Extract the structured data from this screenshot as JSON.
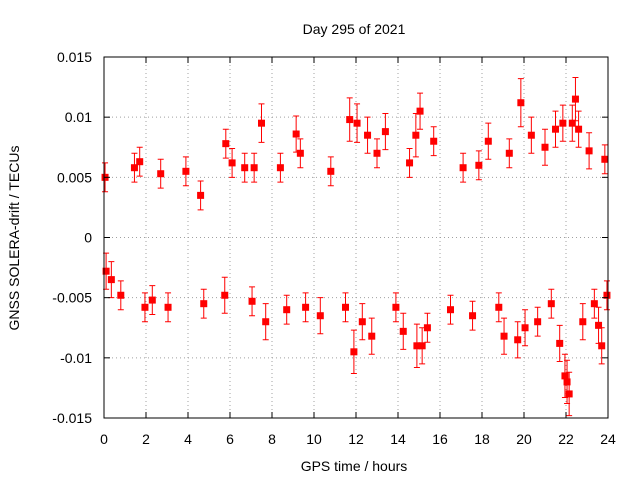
{
  "chart_data": {
    "type": "scatter",
    "title": "Day 295 of 2021",
    "xlabel": "GPS time / hours",
    "ylabel": "GNSS SOLERA-drift / TECUs",
    "xlim": [
      0,
      24
    ],
    "ylim": [
      -0.015,
      0.015
    ],
    "x_ticks": [
      "0",
      "2",
      "4",
      "6",
      "8",
      "10",
      "12",
      "14",
      "16",
      "18",
      "20",
      "22",
      "24"
    ],
    "y_ticks": [
      "-0.015",
      "-0.01",
      "-0.005",
      "0",
      "0.005",
      "0.01",
      "0.015"
    ],
    "grid": true,
    "legend": "none",
    "series": [
      {
        "color": "#ff0000",
        "marker": "square",
        "error_bars": true,
        "points": [
          {
            "x": 0.05,
            "y": 0.005,
            "err": 0.0012
          },
          {
            "x": 0.1,
            "y": -0.0028,
            "err": 0.0015
          },
          {
            "x": 0.35,
            "y": -0.0035,
            "err": 0.0015
          },
          {
            "x": 0.8,
            "y": -0.0048,
            "err": 0.0012
          },
          {
            "x": 1.45,
            "y": 0.0058,
            "err": 0.0012
          },
          {
            "x": 1.7,
            "y": 0.0063,
            "err": 0.0012
          },
          {
            "x": 1.95,
            "y": -0.0058,
            "err": 0.0012
          },
          {
            "x": 2.3,
            "y": -0.0052,
            "err": 0.0012
          },
          {
            "x": 2.7,
            "y": 0.0053,
            "err": 0.0012
          },
          {
            "x": 3.05,
            "y": -0.0058,
            "err": 0.0012
          },
          {
            "x": 3.9,
            "y": 0.0055,
            "err": 0.0012
          },
          {
            "x": 4.6,
            "y": 0.0035,
            "err": 0.0012
          },
          {
            "x": 4.75,
            "y": -0.0055,
            "err": 0.0012
          },
          {
            "x": 5.75,
            "y": -0.0048,
            "err": 0.0015
          },
          {
            "x": 5.8,
            "y": 0.0078,
            "err": 0.0012
          },
          {
            "x": 6.1,
            "y": 0.0062,
            "err": 0.0012
          },
          {
            "x": 6.7,
            "y": 0.0058,
            "err": 0.0012
          },
          {
            "x": 7.05,
            "y": -0.0053,
            "err": 0.0012
          },
          {
            "x": 7.15,
            "y": 0.0058,
            "err": 0.0012
          },
          {
            "x": 7.5,
            "y": 0.0095,
            "err": 0.0016
          },
          {
            "x": 7.7,
            "y": -0.007,
            "err": 0.0015
          },
          {
            "x": 8.4,
            "y": 0.0058,
            "err": 0.0012
          },
          {
            "x": 8.7,
            "y": -0.006,
            "err": 0.0012
          },
          {
            "x": 9.15,
            "y": 0.0086,
            "err": 0.0015
          },
          {
            "x": 9.35,
            "y": 0.007,
            "err": 0.0012
          },
          {
            "x": 9.6,
            "y": -0.0058,
            "err": 0.0012
          },
          {
            "x": 10.3,
            "y": -0.0065,
            "err": 0.0015
          },
          {
            "x": 10.8,
            "y": 0.0055,
            "err": 0.0012
          },
          {
            "x": 11.5,
            "y": -0.0058,
            "err": 0.0012
          },
          {
            "x": 11.7,
            "y": 0.0098,
            "err": 0.0018
          },
          {
            "x": 11.9,
            "y": -0.0095,
            "err": 0.0018
          },
          {
            "x": 12.05,
            "y": 0.0095,
            "err": 0.0016
          },
          {
            "x": 12.3,
            "y": -0.007,
            "err": 0.0015
          },
          {
            "x": 12.55,
            "y": 0.0085,
            "err": 0.0015
          },
          {
            "x": 12.75,
            "y": -0.0082,
            "err": 0.0015
          },
          {
            "x": 13.0,
            "y": 0.007,
            "err": 0.0012
          },
          {
            "x": 13.4,
            "y": 0.0088,
            "err": 0.0015
          },
          {
            "x": 13.9,
            "y": -0.0058,
            "err": 0.0012
          },
          {
            "x": 14.25,
            "y": -0.0078,
            "err": 0.0015
          },
          {
            "x": 14.55,
            "y": 0.0062,
            "err": 0.0012
          },
          {
            "x": 14.85,
            "y": 0.0085,
            "err": 0.0018
          },
          {
            "x": 14.9,
            "y": -0.009,
            "err": 0.0018
          },
          {
            "x": 15.05,
            "y": 0.0105,
            "err": 0.0015
          },
          {
            "x": 15.15,
            "y": -0.009,
            "err": 0.0015
          },
          {
            "x": 15.4,
            "y": -0.0075,
            "err": 0.0012
          },
          {
            "x": 15.7,
            "y": 0.008,
            "err": 0.0012
          },
          {
            "x": 16.5,
            "y": -0.006,
            "err": 0.0012
          },
          {
            "x": 17.1,
            "y": 0.0058,
            "err": 0.0012
          },
          {
            "x": 17.55,
            "y": -0.0065,
            "err": 0.0012
          },
          {
            "x": 17.85,
            "y": 0.006,
            "err": 0.0012
          },
          {
            "x": 18.3,
            "y": 0.008,
            "err": 0.0015
          },
          {
            "x": 18.8,
            "y": -0.0058,
            "err": 0.0012
          },
          {
            "x": 19.05,
            "y": -0.0082,
            "err": 0.0015
          },
          {
            "x": 19.3,
            "y": 0.007,
            "err": 0.0012
          },
          {
            "x": 19.7,
            "y": -0.0085,
            "err": 0.0015
          },
          {
            "x": 19.85,
            "y": 0.0112,
            "err": 0.002
          },
          {
            "x": 20.05,
            "y": -0.0075,
            "err": 0.0015
          },
          {
            "x": 20.35,
            "y": 0.0085,
            "err": 0.0015
          },
          {
            "x": 20.65,
            "y": -0.007,
            "err": 0.0012
          },
          {
            "x": 21.0,
            "y": 0.0075,
            "err": 0.0015
          },
          {
            "x": 21.3,
            "y": -0.0055,
            "err": 0.0012
          },
          {
            "x": 21.5,
            "y": 0.009,
            "err": 0.0015
          },
          {
            "x": 21.7,
            "y": -0.0088,
            "err": 0.0015
          },
          {
            "x": 21.85,
            "y": 0.0095,
            "err": 0.0015
          },
          {
            "x": 21.95,
            "y": -0.0115,
            "err": 0.0018
          },
          {
            "x": 22.05,
            "y": -0.012,
            "err": 0.0018
          },
          {
            "x": 22.15,
            "y": -0.013,
            "err": 0.0018
          },
          {
            "x": 22.3,
            "y": 0.0095,
            "err": 0.0015
          },
          {
            "x": 22.45,
            "y": 0.0115,
            "err": 0.0018
          },
          {
            "x": 22.6,
            "y": 0.009,
            "err": 0.0015
          },
          {
            "x": 22.8,
            "y": -0.007,
            "err": 0.0015
          },
          {
            "x": 23.1,
            "y": 0.0072,
            "err": 0.0015
          },
          {
            "x": 23.35,
            "y": -0.0055,
            "err": 0.0012
          },
          {
            "x": 23.55,
            "y": -0.0073,
            "err": 0.0015
          },
          {
            "x": 23.7,
            "y": -0.009,
            "err": 0.0015
          },
          {
            "x": 23.85,
            "y": 0.0065,
            "err": 0.0012
          },
          {
            "x": 23.95,
            "y": -0.0048,
            "err": 0.0012
          }
        ]
      }
    ]
  }
}
